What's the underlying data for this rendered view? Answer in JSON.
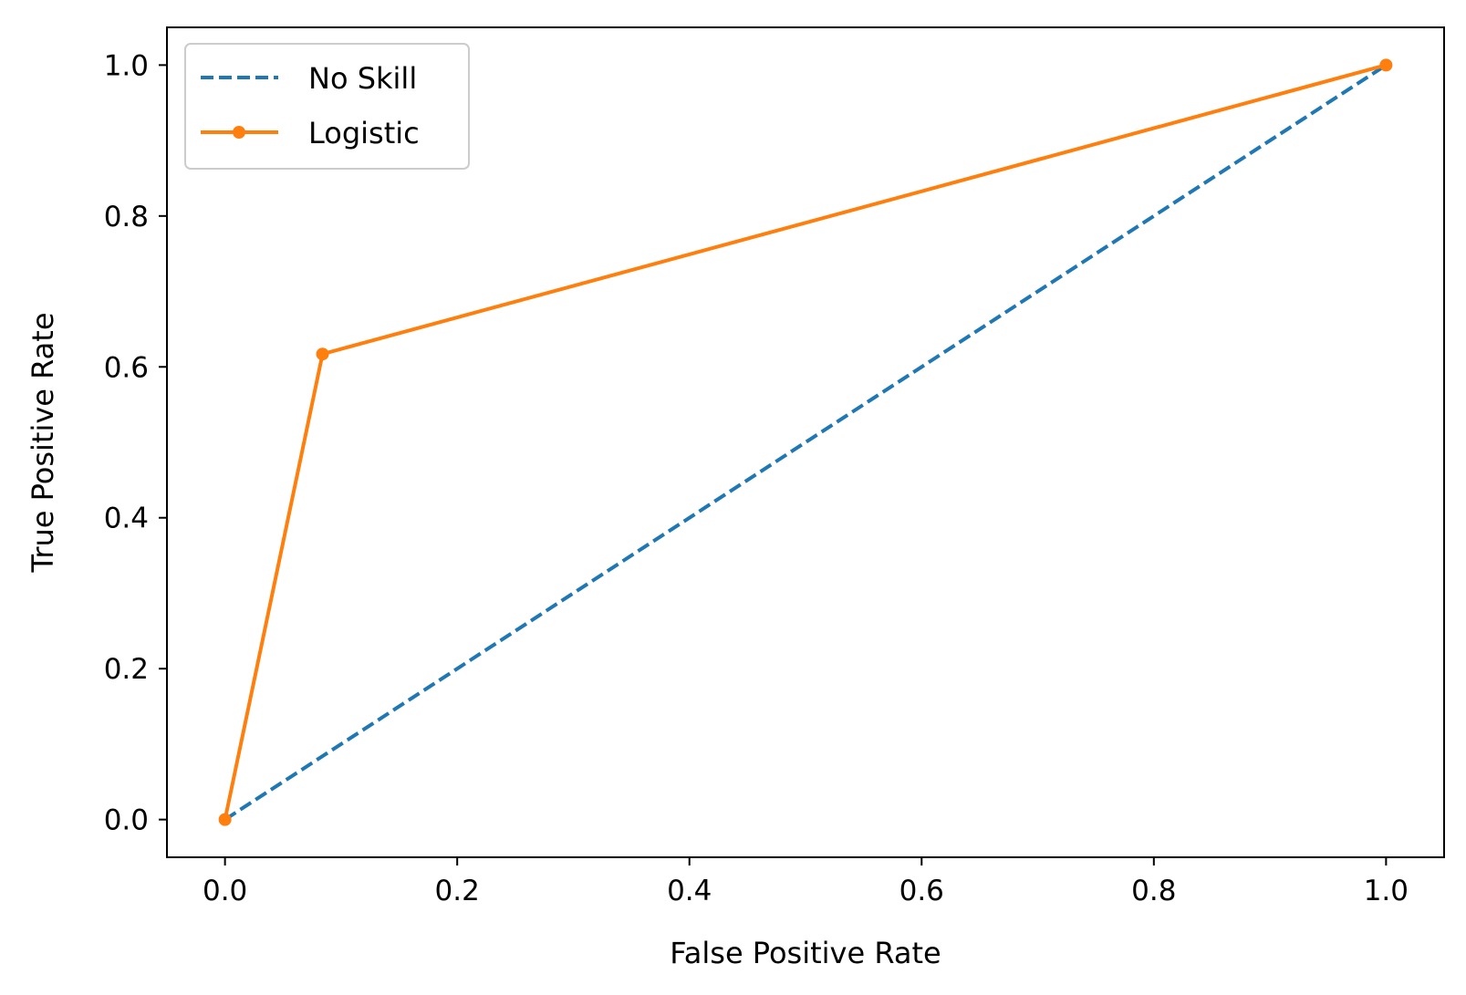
{
  "chart_data": {
    "type": "line",
    "title": "",
    "xlabel": "False Positive Rate",
    "ylabel": "True Positive Rate",
    "xlim": [
      -0.05,
      1.05
    ],
    "ylim": [
      -0.05,
      1.05
    ],
    "xticks": [
      0.0,
      0.2,
      0.4,
      0.6,
      0.8,
      1.0
    ],
    "xtick_labels": [
      "0.0",
      "0.2",
      "0.4",
      "0.6",
      "0.8",
      "1.0"
    ],
    "yticks": [
      0.0,
      0.2,
      0.4,
      0.6,
      0.8,
      1.0
    ],
    "ytick_labels": [
      "0.0",
      "0.2",
      "0.4",
      "0.6",
      "0.8",
      "1.0"
    ],
    "grid": false,
    "legend_position": "top-left",
    "series": [
      {
        "name": "No Skill",
        "color": "#1f77b4",
        "line_style": "dashed",
        "marker": "none",
        "x": [
          0.0,
          1.0
        ],
        "y": [
          0.0,
          1.0
        ]
      },
      {
        "name": "Logistic",
        "color": "#ff7f0e",
        "line_style": "solid",
        "marker": "dot",
        "x": [
          0.0,
          0.084,
          1.0
        ],
        "y": [
          0.0,
          0.617,
          1.0
        ]
      }
    ]
  }
}
